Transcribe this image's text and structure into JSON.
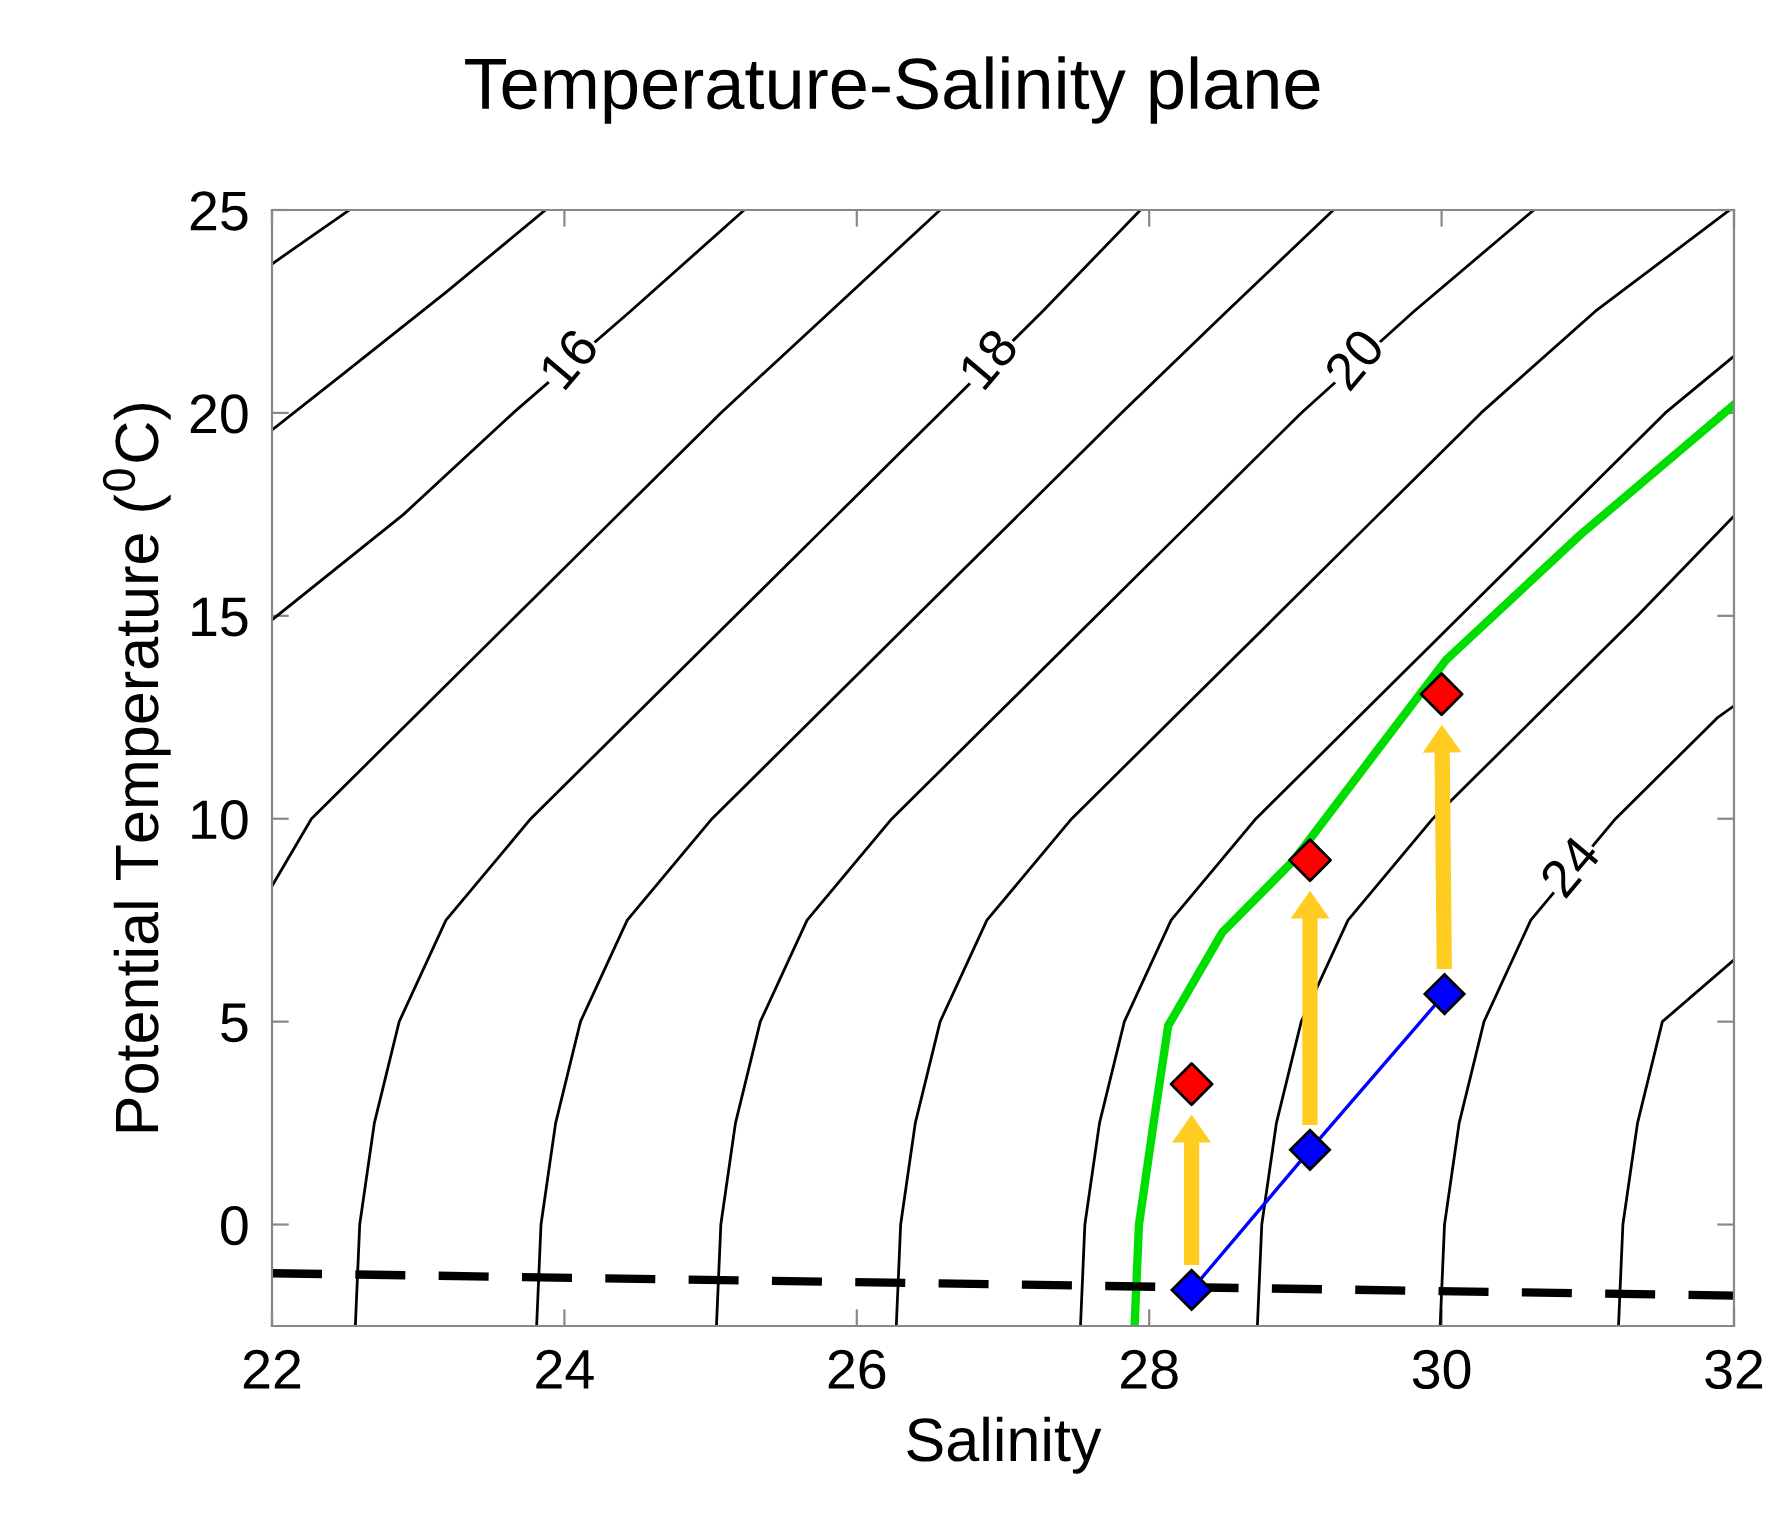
{
  "chart_data": {
    "type": "line",
    "title": "Temperature-Salinity plane",
    "xlabel": "Salinity",
    "ylabel": "Potential Temperature ($^{0}$C)",
    "xlim": [
      22,
      32
    ],
    "ylim": [
      -2.5,
      25
    ],
    "xticks": [
      22,
      24,
      26,
      28,
      30,
      32
    ],
    "yticks": [
      0,
      5,
      10,
      15,
      20,
      25
    ],
    "grid": false,
    "legend": false,
    "series": [
      {
        "color": "#000000",
        "x": [
          22.0,
          22.27,
          22.53
        ],
        "values": [
          23.67,
          24.35,
          25
        ]
      },
      {
        "color": "#000000",
        "x": [
          22.0,
          22.5,
          23.2,
          23.87
        ],
        "values": [
          19.58,
          21,
          23,
          25
        ]
      },
      {
        "color": "#000000",
        "x": [
          22.0,
          22.9,
          23.65,
          24.45,
          25.23
        ],
        "values": [
          14.9,
          17.5,
          20,
          22.5,
          25
        ]
      },
      {
        "color": "#000000",
        "x": [
          22.0,
          22.27,
          22.97,
          23.67,
          24.37,
          25.07,
          25.82,
          26.57
        ],
        "values": [
          8.34,
          10,
          12.5,
          15,
          17.5,
          20,
          22.5,
          25
        ]
      },
      {
        "color": "#000000",
        "x": [
          22.57,
          22.6,
          22.7,
          22.87,
          23.19,
          23.77,
          24.47,
          25.17,
          25.87,
          26.57,
          27.27,
          27.94
        ],
        "values": [
          -2.5,
          0,
          2.5,
          5,
          7.5,
          10,
          12.5,
          15,
          17.5,
          20,
          22.5,
          25
        ]
      },
      {
        "color": "#000000",
        "x": [
          23.81,
          23.84,
          23.94,
          24.11,
          24.43,
          25.01,
          25.71,
          26.41,
          27.11,
          27.81,
          28.53,
          29.26
        ],
        "values": [
          -2.5,
          0,
          2.5,
          5,
          7.5,
          10,
          12.5,
          15,
          17.5,
          20,
          22.5,
          25
        ]
      },
      {
        "color": "#000000",
        "x": [
          25.04,
          25.07,
          25.17,
          25.34,
          25.66,
          26.24,
          26.94,
          27.64,
          28.34,
          29.04,
          29.81,
          30.63
        ],
        "values": [
          -2.5,
          0,
          2.5,
          5,
          7.5,
          10,
          12.5,
          15,
          17.5,
          20,
          22.5,
          25
        ]
      },
      {
        "color": "#000000",
        "x": [
          26.27,
          26.3,
          26.4,
          26.57,
          26.89,
          27.47,
          28.17,
          28.87,
          29.57,
          30.27,
          31.05,
          31.97
        ],
        "values": [
          -2.5,
          0,
          2.5,
          5,
          7.5,
          10,
          12.5,
          15,
          17.5,
          20,
          22.5,
          25
        ]
      },
      {
        "color": "#000000",
        "x": [
          27.53,
          27.56,
          27.66,
          27.83,
          28.15,
          28.73,
          29.43,
          30.13,
          30.83,
          31.53,
          32.0
        ],
        "values": [
          -2.5,
          0,
          2.5,
          5,
          7.5,
          10,
          12.5,
          15,
          17.5,
          20,
          21.4
        ]
      },
      {
        "color": "#000000",
        "x": [
          28.74,
          28.77,
          28.87,
          29.04,
          29.36,
          29.94,
          30.64,
          31.34,
          32.0
        ],
        "values": [
          -2.5,
          0,
          2.5,
          5,
          7.5,
          10,
          12.5,
          15,
          17.46
        ]
      },
      {
        "color": "#000000",
        "x": [
          29.99,
          30.02,
          30.12,
          30.29,
          30.61,
          31.19,
          31.89,
          32.0
        ],
        "values": [
          -2.5,
          0,
          2.5,
          5,
          7.5,
          10,
          12.5,
          12.78
        ]
      },
      {
        "color": "#000000",
        "x": [
          31.21,
          31.24,
          31.34,
          31.51,
          32.0
        ],
        "values": [
          -2.5,
          0,
          2.5,
          5,
          6.52
        ]
      },
      {
        "color": "#00dd00",
        "x": [
          27.9,
          27.93,
          28.03,
          28.13,
          28.5,
          28.99,
          29.51,
          30.03,
          30.95,
          32.0
        ],
        "values": [
          -2.5,
          0,
          2.5,
          4.9,
          7.2,
          8.98,
          11.45,
          13.91,
          17.0,
          20.2
        ]
      },
      {
        "color": "#000000",
        "line_style": "dashed",
        "x": [
          22.0,
          32.0
        ],
        "values": [
          -1.2,
          -1.75
        ]
      },
      {
        "color": "#0000ff",
        "marker": "diamond",
        "x": [
          28.29,
          29.1,
          30.02
        ],
        "values": [
          -1.61,
          1.84,
          5.68
        ]
      },
      {
        "color": "#ff0000",
        "type": "scatter",
        "marker": "diamond",
        "x": [
          28.29,
          29.1,
          30.0
        ],
        "values": [
          3.46,
          8.98,
          13.07
        ]
      }
    ],
    "annotations": [
      {
        "text": "16",
        "x": 24.05,
        "y": 21.25
      },
      {
        "text": "18",
        "x": 26.92,
        "y": 21.25
      },
      {
        "text": "20",
        "x": 29.425,
        "y": 21.25
      },
      {
        "text": "24",
        "x": 30.9,
        "y": 8.75
      }
    ]
  }
}
